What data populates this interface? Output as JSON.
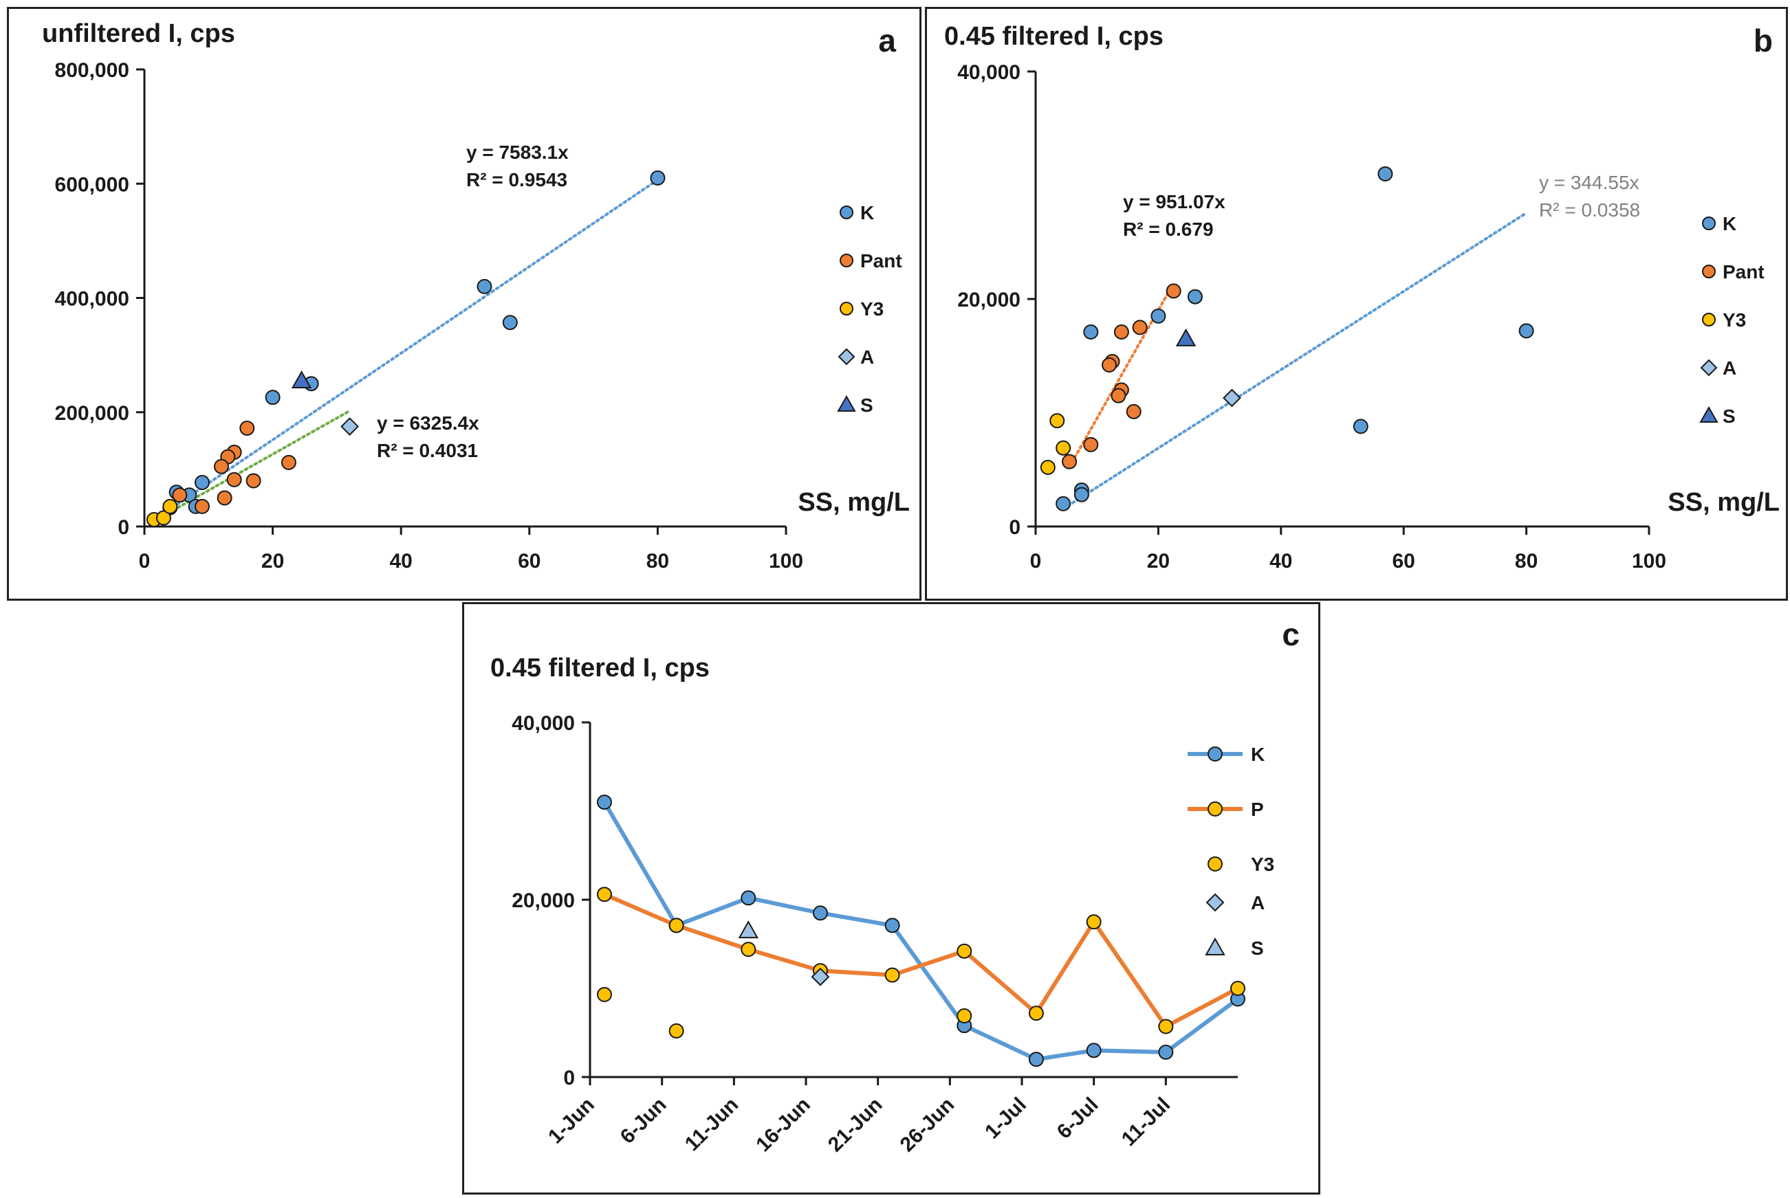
{
  "colors": {
    "K": "#5b9bd5",
    "Pant": "#ed7d31",
    "Y3": "#ffc000",
    "A": "#9dc3e6",
    "S": "#4472c4",
    "trend_K": "#5b9bd5",
    "trend_Pant": "#ed7d31",
    "trend_A": "#70ad47"
  },
  "chart_data": [
    {
      "id": "a",
      "type": "scatter",
      "panel_label": "a",
      "title": "unfiltered I, cps",
      "xlabel": "SS, mg/L",
      "ylabel": "unfiltered I, cps",
      "xlim": [
        0,
        100
      ],
      "ylim": [
        0,
        800000
      ],
      "xticks": [
        0,
        20,
        40,
        60,
        80,
        100
      ],
      "yticks": [
        0,
        200000,
        400000,
        600000,
        800000
      ],
      "ytick_labels": [
        "0",
        "200,000",
        "400,000",
        "600,000",
        "800,000"
      ],
      "legend": [
        "K",
        "Pant",
        "Y3",
        "A",
        "S"
      ],
      "series": [
        {
          "name": "K",
          "marker": "circle",
          "points": [
            [
              80,
              610000
            ],
            [
              53,
              420000
            ],
            [
              57,
              357000
            ],
            [
              20,
              226000
            ],
            [
              26,
              250000
            ],
            [
              9,
              77000
            ],
            [
              5,
              60000
            ],
            [
              7,
              55000
            ],
            [
              8,
              35000
            ],
            [
              4,
              33000
            ]
          ]
        },
        {
          "name": "Pant",
          "marker": "circle",
          "points": [
            [
              16,
              172000
            ],
            [
              14,
              130000
            ],
            [
              13,
              122000
            ],
            [
              12,
              105000
            ],
            [
              14,
              82000
            ],
            [
              17,
              80000
            ],
            [
              22.5,
              112000
            ],
            [
              12.5,
              50000
            ],
            [
              9,
              35000
            ],
            [
              5.5,
              55000
            ]
          ]
        },
        {
          "name": "Y3",
          "marker": "circle",
          "points": [
            [
              1.5,
              12000
            ],
            [
              3,
              15000
            ],
            [
              4,
              35000
            ]
          ]
        },
        {
          "name": "A",
          "marker": "diamond",
          "points": [
            [
              32,
              175000
            ]
          ]
        },
        {
          "name": "S",
          "marker": "triangle",
          "points": [
            [
              24.5,
              255000
            ]
          ]
        }
      ],
      "trendlines": [
        {
          "series": "K",
          "slope": 7583.1,
          "x_range": [
            3,
            80
          ],
          "equation": "y = 7583.1x",
          "r2": "R² = 0.9543"
        },
        {
          "series": "A",
          "slope": 6325.4,
          "x_range": [
            3,
            32
          ],
          "equation": "y = 6325.4x",
          "r2": "R² = 0.4031"
        }
      ]
    },
    {
      "id": "b",
      "type": "scatter",
      "panel_label": "b",
      "title": "0.45 filtered I, cps",
      "xlabel": "SS, mg/L",
      "ylabel": "0.45 filtered I, cps",
      "xlim": [
        0,
        100
      ],
      "ylim": [
        0,
        40000
      ],
      "xticks": [
        0,
        20,
        40,
        60,
        80,
        100
      ],
      "yticks": [
        0,
        20000,
        40000
      ],
      "ytick_labels": [
        "0",
        "20,000",
        "40,000"
      ],
      "legend": [
        "K",
        "Pant",
        "Y3",
        "A",
        "S"
      ],
      "series": [
        {
          "name": "K",
          "marker": "circle",
          "points": [
            [
              57,
              31000
            ],
            [
              26,
              20200
            ],
            [
              20,
              18500
            ],
            [
              9,
              17100
            ],
            [
              80,
              17200
            ],
            [
              53,
              8800
            ],
            [
              7.5,
              3200
            ],
            [
              7.5,
              2800
            ],
            [
              4.5,
              2000
            ]
          ]
        },
        {
          "name": "Pant",
          "marker": "circle",
          "points": [
            [
              22.5,
              20700
            ],
            [
              17,
              17500
            ],
            [
              14,
              17100
            ],
            [
              12.5,
              14500
            ],
            [
              12,
              14200
            ],
            [
              14,
              12000
            ],
            [
              13.5,
              11500
            ],
            [
              16,
              10100
            ],
            [
              9,
              7200
            ],
            [
              5.5,
              5700
            ]
          ]
        },
        {
          "name": "Y3",
          "marker": "circle",
          "points": [
            [
              3.5,
              9300
            ],
            [
              4.5,
              6900
            ],
            [
              2,
              5200
            ]
          ]
        },
        {
          "name": "A",
          "marker": "diamond",
          "points": [
            [
              32,
              11300
            ]
          ]
        },
        {
          "name": "S",
          "marker": "triangle",
          "points": [
            [
              24.5,
              16500
            ]
          ]
        }
      ],
      "trendlines": [
        {
          "series": "K",
          "slope": 344.55,
          "x_range": [
            4.5,
            80
          ],
          "equation": "y = 344.55x",
          "r2": "R² = 0.0358",
          "style": "grey"
        },
        {
          "series": "Pant",
          "slope": 951.07,
          "x_range": [
            5.5,
            22
          ],
          "equation": "y = 951.07x",
          "r2": "R² = 0.679",
          "style": "bold"
        }
      ]
    },
    {
      "id": "c",
      "type": "line",
      "panel_label": "c",
      "title": "0.45 filtered I, cps",
      "xlabel": "",
      "ylabel": "0.45 filtered I, cps",
      "xlim": [
        0,
        45
      ],
      "ylim": [
        0,
        40000
      ],
      "xticks": [
        0,
        5,
        10,
        15,
        20,
        25,
        30,
        35,
        40
      ],
      "xtick_labels": [
        "1-Jun",
        "6-Jun",
        "11-Jun",
        "16-Jun",
        "21-Jun",
        "26-Jun",
        "1-Jul",
        "6-Jul",
        "11-Jul"
      ],
      "yticks": [
        0,
        20000,
        40000
      ],
      "ytick_labels": [
        "0",
        "20,000",
        "40,000"
      ],
      "legend": [
        "K",
        "P",
        "Y3",
        "A",
        "S"
      ],
      "series": [
        {
          "name": "K",
          "style": "line",
          "marker": "circle",
          "points": [
            [
              1,
              31000
            ],
            [
              6,
              17100
            ],
            [
              11,
              20200
            ],
            [
              16,
              18500
            ],
            [
              21,
              17100
            ],
            [
              26,
              5800
            ],
            [
              31,
              2000
            ],
            [
              35,
              3000
            ],
            [
              40,
              2800
            ],
            [
              45,
              8800
            ]
          ]
        },
        {
          "name": "P",
          "style": "line",
          "marker": "circle",
          "points": [
            [
              1,
              20600
            ],
            [
              6,
              17100
            ],
            [
              11,
              14400
            ],
            [
              16,
              12000
            ],
            [
              21,
              11500
            ],
            [
              26,
              14200
            ],
            [
              31,
              7200
            ],
            [
              35,
              17500
            ],
            [
              40,
              5700
            ],
            [
              45,
              10000
            ]
          ]
        },
        {
          "name": "Y3",
          "style": "markers",
          "marker": "circle",
          "points": [
            [
              1,
              9300
            ],
            [
              6,
              5200
            ],
            [
              26,
              6900
            ]
          ]
        },
        {
          "name": "A",
          "style": "markers",
          "marker": "diamond",
          "points": [
            [
              16,
              11300
            ]
          ]
        },
        {
          "name": "S",
          "style": "markers",
          "marker": "triangle",
          "points": [
            [
              11,
              16500
            ]
          ]
        }
      ]
    }
  ]
}
